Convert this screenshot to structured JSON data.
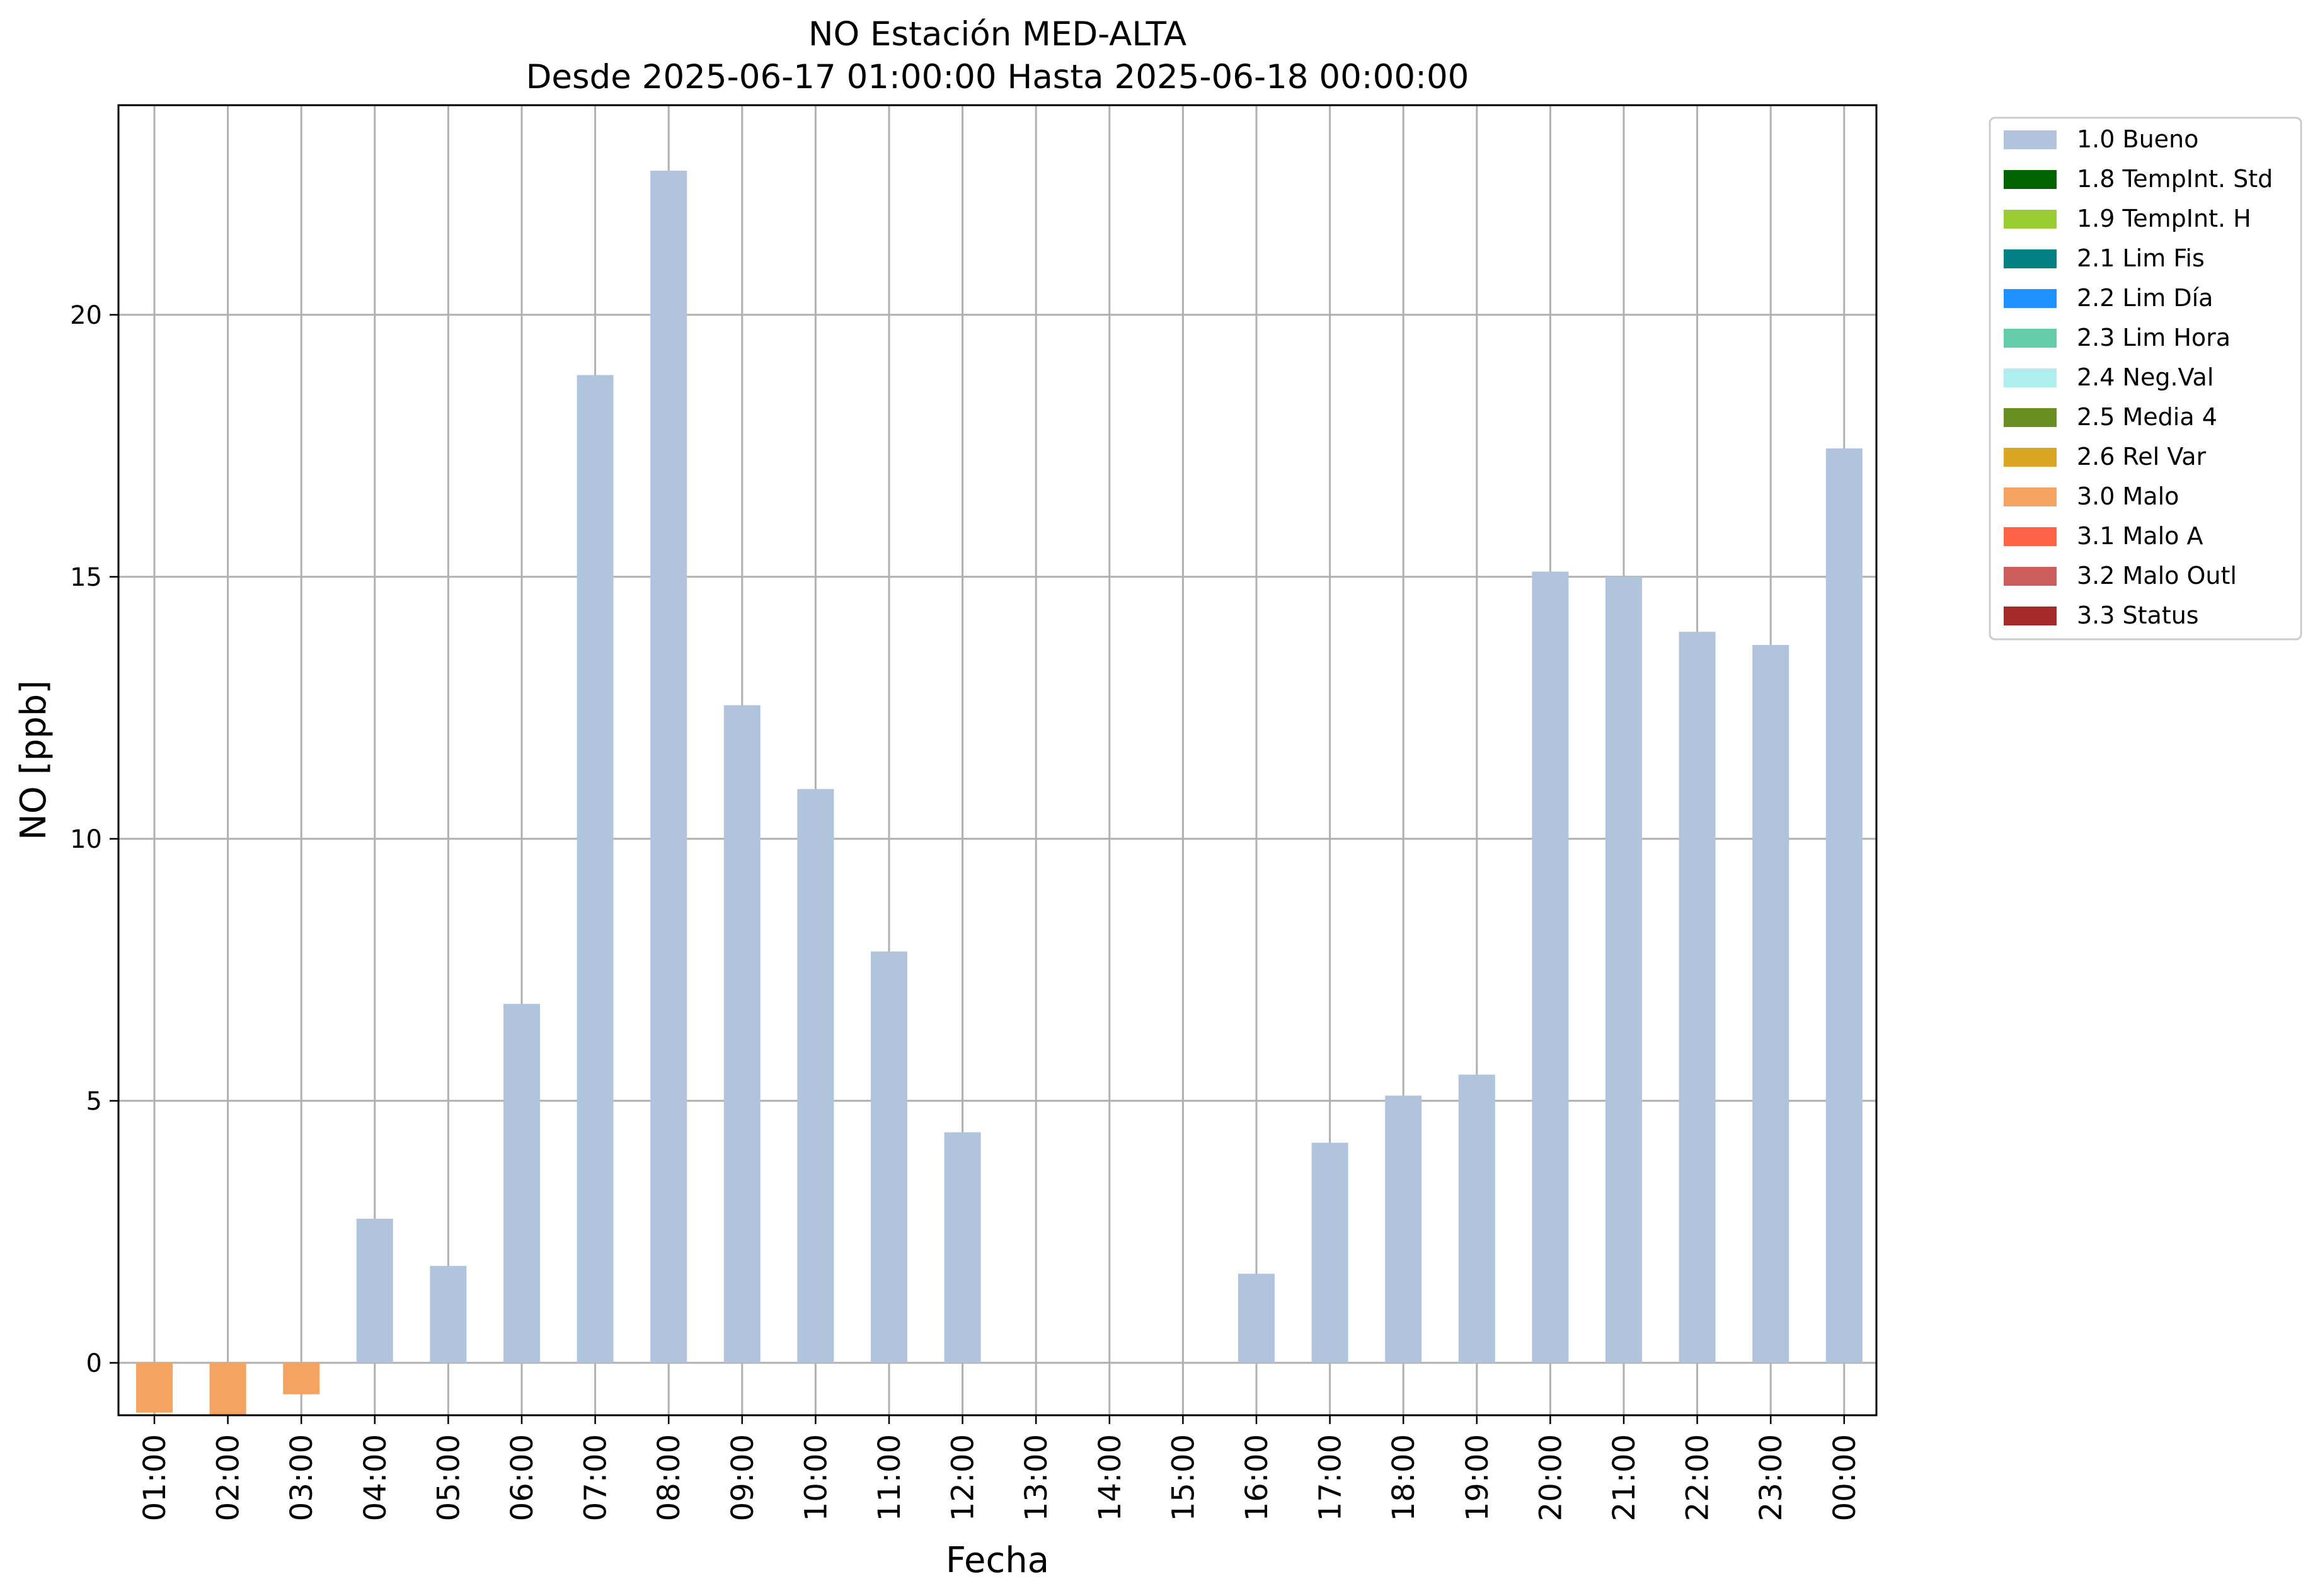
{
  "chart_data": {
    "type": "bar",
    "title": "NO Estación MED-ALTA",
    "subtitle": "Desde 2025-06-17 01:00:00 Hasta 2025-06-18 00:00:00",
    "xlabel": "Fecha",
    "ylabel": "NO [ppb]",
    "ylim": [
      -1,
      24
    ],
    "yticks": [
      0,
      5,
      10,
      15,
      20
    ],
    "grid": true,
    "legend_position": "outside-right-top",
    "categories": [
      "01:00",
      "02:00",
      "03:00",
      "04:00",
      "05:00",
      "06:00",
      "07:00",
      "08:00",
      "09:00",
      "10:00",
      "11:00",
      "12:00",
      "13:00",
      "14:00",
      "15:00",
      "16:00",
      "17:00",
      "18:00",
      "19:00",
      "20:00",
      "21:00",
      "22:00",
      "23:00",
      "00:00"
    ],
    "series": [
      {
        "name": "1.0 Bueno",
        "color": "#b0c4de",
        "values": [
          null,
          null,
          null,
          2.75,
          1.85,
          6.85,
          18.85,
          22.75,
          12.55,
          10.95,
          7.85,
          4.4,
          null,
          null,
          null,
          1.7,
          4.2,
          5.1,
          5.5,
          15.1,
          15.0,
          13.95,
          13.7,
          17.45
        ]
      },
      {
        "name": "3.0 Malo",
        "color": "#f4a460",
        "values": [
          -0.95,
          -1.0,
          -0.6,
          null,
          null,
          null,
          null,
          null,
          null,
          null,
          null,
          null,
          null,
          null,
          null,
          null,
          null,
          null,
          null,
          null,
          null,
          null,
          null,
          null
        ]
      }
    ]
  },
  "legend": {
    "items": [
      {
        "label": "1.0 Bueno",
        "color": "#b0c4de"
      },
      {
        "label": "1.8 TempInt. Std",
        "color": "#006400"
      },
      {
        "label": "1.9 TempInt. H",
        "color": "#9acd32"
      },
      {
        "label": "2.1 Lim Fis",
        "color": "#008080"
      },
      {
        "label": "2.2 Lim Día",
        "color": "#1e90ff"
      },
      {
        "label": "2.3 Lim Hora",
        "color": "#66cdaa"
      },
      {
        "label": "2.4 Neg.Val",
        "color": "#afeeee"
      },
      {
        "label": "2.5 Media 4",
        "color": "#6b8e23"
      },
      {
        "label": "2.6 Rel Var",
        "color": "#daa520"
      },
      {
        "label": "3.0 Malo",
        "color": "#f4a460"
      },
      {
        "label": "3.1 Malo A",
        "color": "#ff6347"
      },
      {
        "label": "3.2 Malo Outl",
        "color": "#cd5c5c"
      },
      {
        "label": "3.3 Status",
        "color": "#a52a2a"
      }
    ]
  }
}
